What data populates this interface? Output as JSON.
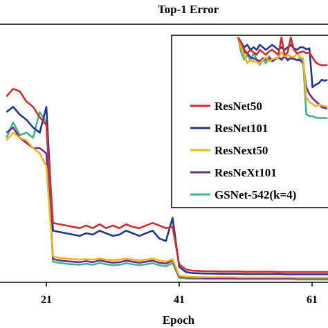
{
  "chart_data": {
    "type": "line",
    "title": "Top-1 Error",
    "xlabel": "Epoch",
    "ylabel": "",
    "xlim": [
      15,
      64
    ],
    "ylim": [
      0,
      100
    ],
    "xticks": [
      21,
      41,
      61
    ],
    "grid": false,
    "legend_position": "right",
    "x": [
      15,
      16,
      17,
      18,
      19,
      20,
      21,
      22,
      23,
      24,
      25,
      26,
      27,
      28,
      29,
      30,
      31,
      32,
      33,
      34,
      35,
      36,
      37,
      38,
      39,
      40,
      41,
      42,
      43,
      44,
      45,
      46,
      47,
      48,
      49,
      50,
      51,
      52,
      53,
      54,
      55,
      56,
      57,
      58,
      59,
      60,
      61,
      62,
      63,
      64
    ],
    "series": [
      {
        "name": "ResNet50",
        "color": "#d62a2a",
        "values": [
          72,
          75,
          74,
          70,
          68,
          64,
          61,
          23,
          22.5,
          22,
          21.5,
          21,
          22,
          21,
          22.5,
          21,
          22,
          21,
          22.5,
          21.5,
          21,
          22,
          23,
          22,
          21,
          21.5,
          7,
          5,
          4.5,
          4.4,
          4.3,
          4.3,
          4.2,
          4.2,
          4.2,
          4.2,
          4.1,
          4.1,
          4.1,
          4.1,
          4.1,
          4.0,
          4.0,
          4.0,
          4.0,
          4.0,
          4.0,
          4.0,
          4.0,
          4.0
        ]
      },
      {
        "name": "ResNet101",
        "color": "#1f3590",
        "values": [
          66,
          68,
          65,
          63,
          60,
          58,
          68,
          20,
          19.5,
          19,
          18.5,
          18,
          19,
          18.5,
          20,
          19,
          18,
          18.5,
          20,
          19,
          18,
          19,
          20,
          17,
          16,
          25,
          6,
          4,
          3.6,
          3.5,
          3.4,
          3.4,
          3.3,
          3.3,
          3.3,
          3.3,
          3.2,
          3.2,
          3.2,
          3.2,
          3.2,
          3.2,
          3.1,
          3.1,
          3.1,
          3.1,
          3.1,
          3.1,
          3.1,
          3.1
        ]
      },
      {
        "name": "ResNext50",
        "color": "#f4b31a",
        "values": [
          55,
          58,
          56,
          55,
          52,
          50,
          45,
          10,
          9.5,
          9.2,
          9,
          8.8,
          9,
          8.8,
          9.2,
          8.8,
          8.6,
          8.8,
          9.2,
          8.8,
          8.5,
          8.8,
          9.2,
          8.5,
          8,
          9,
          2.6,
          2.2,
          2.1,
          2.0,
          2.0,
          2.0,
          2.0,
          2.0,
          2.0,
          1.9,
          1.9,
          1.9,
          1.9,
          1.9,
          1.9,
          1.9,
          1.9,
          1.9,
          1.8,
          1.8,
          1.8,
          1.8,
          1.8,
          1.8
        ]
      },
      {
        "name": "ResNeXt101",
        "color": "#6a2c91",
        "values": [
          58,
          60,
          56,
          54,
          52,
          52,
          50,
          9,
          8.5,
          8.2,
          8,
          7.8,
          8.2,
          7.8,
          8.5,
          8,
          7.6,
          7.8,
          8.4,
          8,
          7.6,
          8,
          8.4,
          7.6,
          7.2,
          8.5,
          2.2,
          1.9,
          1.8,
          1.8,
          1.7,
          1.7,
          1.7,
          1.7,
          1.7,
          1.6,
          1.6,
          1.6,
          1.6,
          1.6,
          1.6,
          1.6,
          1.6,
          1.6,
          1.5,
          1.5,
          1.5,
          1.5,
          1.5,
          1.5
        ]
      },
      {
        "name": "GSNet-542(k=4)",
        "color": "#3fb58a",
        "values": [
          56,
          62,
          57,
          58,
          56,
          66,
          62,
          8,
          7.5,
          7.2,
          7,
          6.8,
          7.2,
          6.8,
          7.5,
          7,
          6.6,
          6.8,
          7.4,
          7,
          6.6,
          7,
          7.4,
          6.6,
          6.2,
          7.5,
          1.8,
          1.5,
          1.4,
          1.4,
          1.3,
          1.3,
          1.3,
          1.3,
          1.3,
          1.2,
          1.2,
          1.2,
          1.2,
          1.2,
          1.2,
          1.2,
          1.2,
          1.2,
          1.1,
          1.1,
          1.1,
          1.1,
          1.1,
          1.1
        ]
      }
    ],
    "inset": {
      "x": [
        35,
        36,
        37,
        38,
        39,
        40,
        41,
        42,
        43,
        44,
        45,
        46,
        47,
        48,
        49,
        50,
        51,
        52,
        53,
        54,
        55,
        56,
        57,
        58,
        59,
        60,
        61,
        62,
        63,
        64
      ],
      "ylim": [
        0,
        30
      ],
      "series": [
        {
          "color": "#d62a2a",
          "values": [
            30,
            29,
            27.5,
            26.8,
            27.5,
            27,
            26.5,
            27.5,
            27,
            26.5,
            27.2,
            27.5,
            27,
            26.5,
            30,
            26.5,
            27,
            30,
            27.5,
            26.8,
            27,
            27.2,
            26.8,
            27,
            26,
            25,
            24.6,
            24.4,
            24.4,
            24.5
          ]
        },
        {
          "color": "#1f3590",
          "values": [
            30,
            29,
            28,
            28.5,
            27.5,
            28,
            27.5,
            28.5,
            28,
            27.5,
            28,
            28.5,
            28,
            27.5,
            28,
            27.5,
            28,
            28.5,
            27.8,
            27.5,
            28,
            28,
            27.6,
            27.8,
            20,
            20.5,
            20.8,
            21.5,
            21.3,
            21.5
          ]
        },
        {
          "color": "#f4b31a",
          "values": [
            30,
            28,
            26.5,
            24.8,
            25.5,
            25.2,
            25,
            24.8,
            25.5,
            26,
            25.2,
            25.6,
            25.8,
            26,
            27,
            26.2,
            26.5,
            26.2,
            26,
            26.8,
            26,
            25.8,
            18,
            17,
            16.6,
            16.2,
            16.5,
            16.3,
            16.2,
            16.1
          ]
        },
        {
          "color": "#6a2c91",
          "values": [
            30,
            28,
            27,
            26.8,
            26,
            25.8,
            25.5,
            25.2,
            25.8,
            25.5,
            25.8,
            25.2,
            25.6,
            26,
            25.6,
            26.2,
            25.4,
            25.8,
            25.6,
            25.5,
            25.4,
            24.8,
            20,
            18.6,
            17.8,
            17.2,
            16.6,
            16,
            15.8,
            15.7
          ]
        },
        {
          "color": "#3fb58a",
          "values": [
            30,
            27,
            25.5,
            26.5,
            25.4,
            26.8,
            25.6,
            24.5,
            25.5,
            24.8,
            26.2,
            25.4,
            25.6,
            26,
            25.4,
            26.2,
            25.6,
            26,
            25.8,
            25.4,
            25.8,
            25.2,
            14.6,
            14.2,
            14.2,
            13.9,
            13.8,
            13.8,
            13.8,
            13.8
          ]
        }
      ]
    }
  }
}
